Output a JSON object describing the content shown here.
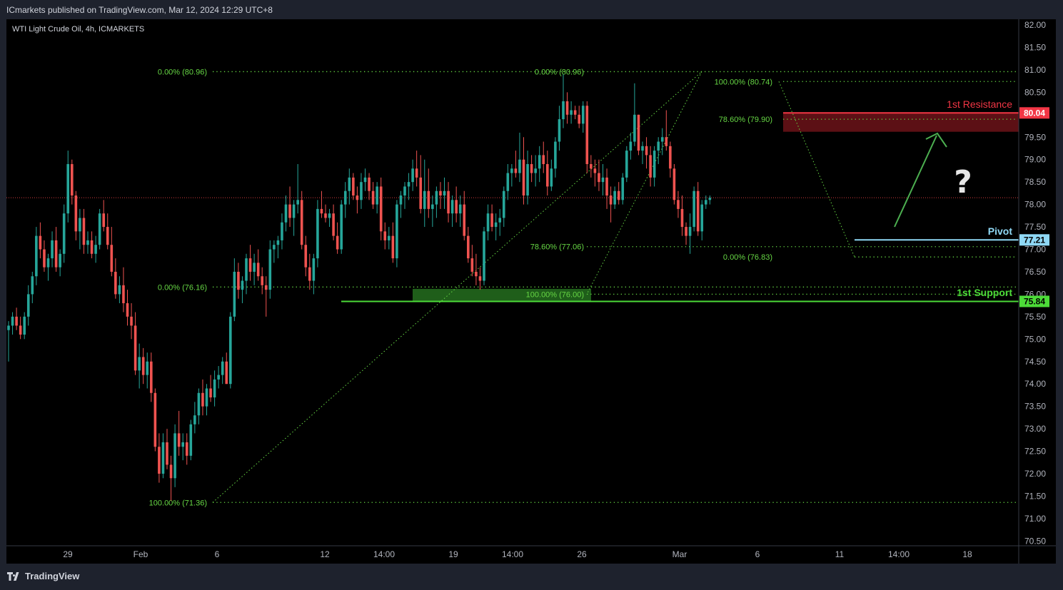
{
  "header": {
    "publisher": "ICmarkets published on TradingView.com, Mar 12, 2024 12:29 UTC+8",
    "symbol": "WTI Light Crude Oil, 4h, ICMARKETS"
  },
  "footer": {
    "brand": "TradingView"
  },
  "colors": {
    "up": "#26a69a",
    "down": "#ef5350",
    "fib": "#66d644",
    "resistance": "#f23645",
    "support": "#4cdb38",
    "pivot": "#8fd8f5",
    "bg": "#000000"
  },
  "chart_data": {
    "type": "candlestick",
    "title": "WTI Light Crude Oil, 4h, ICMARKETS",
    "ylim": [
      70.25,
      82.25
    ],
    "y_ticks": [
      "82.00",
      "81.50",
      "81.00",
      "80.50",
      "80.00",
      "79.50",
      "79.00",
      "78.50",
      "78.00",
      "77.50",
      "77.00",
      "76.50",
      "76.00",
      "75.50",
      "75.00",
      "74.50",
      "74.00",
      "73.50",
      "73.00",
      "72.50",
      "72.00",
      "71.50",
      "71.00",
      "70.50"
    ],
    "x_ticks": [
      "29",
      "Feb",
      "6",
      "12",
      "14:00",
      "19",
      "14:00",
      "26",
      "Mar",
      "6",
      "11",
      "14:00",
      "18"
    ],
    "current_price": 78.15,
    "price_markers": [
      {
        "name": "resistance",
        "label": "80.04",
        "value": 80.04
      },
      {
        "name": "pivot",
        "label": "77.21",
        "value": 77.21
      },
      {
        "name": "support",
        "label": "75.84",
        "value": 75.84
      }
    ],
    "zones": [
      {
        "name": "1st Resistance",
        "label": "1st Resistance",
        "from": 79.62,
        "to": 80.04
      },
      {
        "name": "1st Support",
        "label": "1st Support",
        "from": 75.84,
        "to": 76.12
      }
    ],
    "levels": [
      {
        "name": "Pivot",
        "label": "Pivot",
        "value": 77.21
      }
    ],
    "fib_labels": [
      {
        "text": "0.00% (80.96)",
        "value": 80.96
      },
      {
        "text": "0.00% (80.96)",
        "value": 80.96
      },
      {
        "text": "100.00% (80.74)",
        "value": 80.74
      },
      {
        "text": "78.60% (79.90)",
        "value": 79.9
      },
      {
        "text": "78.60% (77.06)",
        "value": 77.06
      },
      {
        "text": "0.00% (76.83)",
        "value": 76.83
      },
      {
        "text": "0.00% (76.16)",
        "value": 76.16
      },
      {
        "text": "100.00% (76.00)",
        "value": 76.0
      },
      {
        "text": "100.00% (71.36)",
        "value": 71.36
      }
    ],
    "annotation": "?",
    "candles": [
      [
        75.2,
        75.4,
        74.5,
        75.3
      ],
      [
        75.3,
        75.6,
        75.1,
        75.5
      ],
      [
        75.5,
        75.7,
        75.2,
        75.3
      ],
      [
        75.3,
        75.5,
        75.0,
        75.1
      ],
      [
        75.1,
        75.6,
        75.0,
        75.5
      ],
      [
        75.5,
        76.2,
        75.3,
        76.0
      ],
      [
        76.0,
        76.5,
        75.8,
        76.4
      ],
      [
        76.4,
        77.5,
        76.2,
        77.3
      ],
      [
        77.3,
        77.6,
        76.8,
        77.0
      ],
      [
        77.0,
        77.2,
        76.5,
        76.6
      ],
      [
        76.6,
        76.9,
        76.3,
        76.8
      ],
      [
        76.8,
        77.4,
        76.6,
        77.2
      ],
      [
        77.2,
        77.5,
        76.5,
        76.6
      ],
      [
        76.6,
        77.0,
        76.4,
        76.9
      ],
      [
        76.9,
        78.0,
        76.7,
        77.8
      ],
      [
        77.8,
        79.2,
        77.6,
        78.9
      ],
      [
        78.9,
        79.0,
        78.0,
        78.2
      ],
      [
        78.2,
        78.3,
        77.2,
        77.4
      ],
      [
        77.4,
        77.9,
        77.0,
        77.7
      ],
      [
        77.7,
        77.9,
        76.9,
        77.1
      ],
      [
        77.1,
        77.4,
        76.9,
        77.2
      ],
      [
        77.2,
        77.4,
        76.8,
        76.9
      ],
      [
        76.9,
        77.3,
        76.7,
        77.1
      ],
      [
        77.1,
        77.9,
        77.0,
        77.8
      ],
      [
        77.8,
        78.1,
        77.4,
        77.5
      ],
      [
        77.5,
        77.8,
        77.0,
        77.1
      ],
      [
        77.1,
        77.5,
        76.4,
        76.5
      ],
      [
        76.5,
        76.8,
        75.9,
        76.0
      ],
      [
        76.0,
        76.4,
        75.8,
        76.2
      ],
      [
        76.2,
        76.6,
        75.6,
        75.8
      ],
      [
        75.8,
        76.1,
        75.3,
        75.5
      ],
      [
        75.5,
        75.8,
        75.0,
        75.3
      ],
      [
        75.3,
        75.6,
        74.2,
        74.3
      ],
      [
        74.3,
        74.9,
        73.9,
        74.6
      ],
      [
        74.6,
        74.8,
        74.0,
        74.2
      ],
      [
        74.2,
        74.7,
        73.9,
        74.5
      ],
      [
        74.5,
        74.7,
        73.6,
        73.8
      ],
      [
        73.8,
        73.9,
        72.5,
        72.6
      ],
      [
        72.6,
        72.9,
        71.8,
        72.0
      ],
      [
        72.0,
        72.9,
        71.9,
        72.7
      ],
      [
        72.7,
        73.0,
        72.1,
        72.2
      ],
      [
        72.2,
        72.4,
        71.4,
        71.9
      ],
      [
        71.9,
        73.1,
        71.7,
        72.9
      ],
      [
        72.9,
        73.4,
        72.4,
        72.6
      ],
      [
        72.6,
        72.9,
        72.3,
        72.7
      ],
      [
        72.7,
        72.9,
        72.2,
        72.4
      ],
      [
        72.4,
        73.2,
        72.3,
        73.1
      ],
      [
        73.1,
        73.6,
        72.9,
        73.3
      ],
      [
        73.3,
        73.9,
        73.1,
        73.8
      ],
      [
        73.8,
        74.1,
        73.3,
        73.5
      ],
      [
        73.5,
        74.0,
        73.3,
        73.9
      ],
      [
        73.9,
        74.2,
        73.6,
        73.7
      ],
      [
        73.7,
        74.3,
        73.5,
        74.1
      ],
      [
        74.1,
        74.4,
        73.9,
        74.2
      ],
      [
        74.2,
        74.6,
        74.0,
        74.5
      ],
      [
        74.5,
        74.7,
        74.0,
        74.0
      ],
      [
        74.0,
        75.6,
        73.9,
        75.5
      ],
      [
        75.5,
        76.8,
        75.4,
        76.5
      ],
      [
        76.5,
        76.7,
        75.9,
        76.1
      ],
      [
        76.1,
        76.4,
        75.8,
        76.3
      ],
      [
        76.3,
        76.9,
        76.0,
        76.8
      ],
      [
        76.8,
        77.1,
        76.3,
        76.5
      ],
      [
        76.5,
        76.9,
        76.2,
        76.7
      ],
      [
        76.7,
        77.0,
        76.3,
        76.4
      ],
      [
        76.4,
        76.6,
        76.0,
        76.2
      ],
      [
        76.2,
        76.4,
        75.5,
        76.1
      ],
      [
        76.1,
        77.2,
        75.9,
        77.0
      ],
      [
        77.0,
        77.2,
        76.7,
        77.1
      ],
      [
        77.1,
        77.3,
        76.8,
        77.2
      ],
      [
        77.2,
        77.8,
        77.0,
        77.6
      ],
      [
        77.6,
        78.2,
        77.4,
        78.0
      ],
      [
        78.0,
        78.4,
        77.5,
        77.7
      ],
      [
        77.7,
        78.1,
        77.3,
        78.0
      ],
      [
        78.0,
        78.9,
        77.8,
        78.1
      ],
      [
        78.1,
        78.3,
        77.0,
        77.1
      ],
      [
        77.1,
        77.3,
        76.4,
        76.6
      ],
      [
        76.6,
        76.9,
        76.1,
        76.3
      ],
      [
        76.3,
        76.9,
        76.0,
        76.8
      ],
      [
        76.8,
        78.1,
        76.6,
        77.9
      ],
      [
        77.9,
        78.3,
        77.7,
        77.8
      ],
      [
        77.8,
        78.0,
        77.6,
        77.7
      ],
      [
        77.7,
        77.9,
        77.5,
        77.8
      ],
      [
        77.8,
        78.0,
        77.2,
        77.3
      ],
      [
        77.3,
        77.6,
        76.9,
        77.0
      ],
      [
        77.0,
        78.1,
        76.9,
        78.0
      ],
      [
        78.0,
        78.5,
        77.7,
        78.3
      ],
      [
        78.3,
        78.8,
        78.0,
        78.6
      ],
      [
        78.6,
        78.7,
        78.1,
        78.2
      ],
      [
        78.2,
        78.4,
        77.8,
        78.1
      ],
      [
        78.1,
        78.7,
        77.9,
        78.5
      ],
      [
        78.5,
        78.8,
        78.3,
        78.6
      ],
      [
        78.6,
        78.7,
        78.1,
        78.3
      ],
      [
        78.3,
        78.5,
        77.9,
        78.0
      ],
      [
        78.0,
        78.5,
        77.8,
        78.4
      ],
      [
        78.4,
        78.6,
        77.2,
        77.4
      ],
      [
        77.4,
        77.6,
        77.0,
        77.2
      ],
      [
        77.2,
        77.5,
        77.0,
        77.3
      ],
      [
        77.3,
        77.6,
        76.7,
        76.8
      ],
      [
        76.8,
        78.1,
        76.6,
        78.0
      ],
      [
        78.0,
        78.3,
        77.7,
        78.2
      ],
      [
        78.2,
        78.5,
        77.9,
        78.4
      ],
      [
        78.4,
        78.7,
        78.1,
        78.5
      ],
      [
        78.5,
        79.0,
        78.3,
        78.8
      ],
      [
        78.8,
        79.2,
        78.4,
        78.6
      ],
      [
        78.6,
        79.1,
        77.8,
        77.9
      ],
      [
        77.9,
        79.0,
        77.5,
        78.3
      ],
      [
        78.3,
        78.8,
        77.7,
        77.9
      ],
      [
        77.9,
        78.2,
        77.5,
        78.0
      ],
      [
        78.0,
        78.4,
        77.7,
        78.3
      ],
      [
        78.3,
        78.5,
        77.9,
        78.2
      ],
      [
        78.2,
        78.6,
        77.9,
        78.3
      ],
      [
        78.3,
        78.5,
        77.6,
        77.8
      ],
      [
        77.8,
        78.2,
        77.5,
        78.1
      ],
      [
        78.1,
        78.4,
        77.6,
        77.8
      ],
      [
        77.8,
        78.2,
        77.5,
        78.0
      ],
      [
        78.0,
        78.3,
        77.2,
        77.3
      ],
      [
        77.3,
        77.5,
        76.7,
        76.8
      ],
      [
        76.8,
        77.1,
        76.4,
        76.5
      ],
      [
        76.5,
        76.9,
        76.2,
        76.4
      ],
      [
        76.4,
        76.6,
        76.1,
        76.3
      ],
      [
        76.3,
        77.5,
        76.2,
        77.4
      ],
      [
        77.4,
        78.0,
        77.2,
        77.8
      ],
      [
        77.8,
        78.0,
        77.4,
        77.5
      ],
      [
        77.5,
        77.8,
        77.2,
        77.6
      ],
      [
        77.6,
        77.9,
        77.3,
        77.7
      ],
      [
        77.7,
        78.4,
        77.5,
        78.3
      ],
      [
        78.3,
        78.9,
        78.1,
        78.7
      ],
      [
        78.7,
        78.9,
        78.4,
        78.8
      ],
      [
        78.8,
        79.2,
        78.6,
        78.7
      ],
      [
        78.7,
        79.6,
        78.5,
        79.0
      ],
      [
        79.0,
        79.5,
        78.0,
        78.2
      ],
      [
        78.2,
        79.2,
        78.0,
        78.9
      ],
      [
        78.9,
        79.1,
        78.5,
        78.7
      ],
      [
        78.7,
        79.1,
        78.4,
        78.8
      ],
      [
        78.8,
        79.3,
        78.5,
        79.1
      ],
      [
        79.1,
        79.4,
        78.7,
        78.9
      ],
      [
        78.9,
        79.2,
        78.2,
        78.4
      ],
      [
        78.4,
        79.0,
        78.3,
        78.8
      ],
      [
        78.8,
        79.5,
        78.6,
        79.4
      ],
      [
        79.4,
        80.2,
        79.2,
        79.9
      ],
      [
        79.9,
        80.9,
        79.7,
        80.3
      ],
      [
        80.3,
        80.5,
        79.8,
        80.0
      ],
      [
        80.0,
        80.3,
        79.8,
        80.1
      ],
      [
        80.1,
        80.2,
        79.9,
        80.0
      ],
      [
        80.0,
        80.2,
        79.7,
        79.8
      ],
      [
        79.8,
        80.3,
        79.6,
        80.2
      ],
      [
        80.2,
        80.3,
        78.7,
        78.9
      ],
      [
        78.9,
        79.1,
        78.6,
        78.8
      ],
      [
        78.8,
        79.0,
        78.4,
        78.7
      ],
      [
        78.7,
        79.0,
        78.3,
        78.5
      ],
      [
        78.5,
        78.9,
        78.2,
        78.6
      ],
      [
        78.6,
        78.8,
        77.9,
        78.2
      ],
      [
        78.2,
        78.4,
        77.6,
        78.0
      ],
      [
        78.0,
        78.4,
        77.9,
        78.3
      ],
      [
        78.3,
        78.5,
        78.0,
        78.1
      ],
      [
        78.1,
        78.7,
        78.0,
        78.6
      ],
      [
        78.6,
        79.3,
        78.5,
        79.2
      ],
      [
        79.2,
        79.6,
        79.0,
        79.4
      ],
      [
        79.4,
        80.7,
        79.3,
        80.0
      ],
      [
        80.0,
        80.0,
        79.1,
        79.2
      ],
      [
        79.2,
        79.4,
        78.9,
        79.3
      ],
      [
        79.3,
        79.5,
        78.8,
        79.1
      ],
      [
        79.1,
        79.3,
        78.4,
        78.6
      ],
      [
        78.6,
        79.3,
        78.4,
        79.2
      ],
      [
        79.2,
        79.5,
        78.9,
        79.4
      ],
      [
        79.4,
        79.7,
        79.1,
        79.5
      ],
      [
        79.5,
        80.1,
        79.2,
        79.3
      ],
      [
        79.3,
        79.4,
        78.6,
        78.8
      ],
      [
        78.8,
        78.9,
        78.0,
        78.1
      ],
      [
        78.1,
        78.3,
        77.7,
        77.9
      ],
      [
        77.9,
        78.2,
        77.3,
        77.5
      ],
      [
        77.5,
        77.6,
        77.1,
        77.3
      ],
      [
        77.3,
        77.8,
        76.9,
        77.5
      ],
      [
        77.5,
        78.4,
        77.4,
        78.3
      ],
      [
        78.3,
        78.5,
        77.3,
        77.4
      ],
      [
        77.4,
        78.1,
        77.2,
        78.0
      ],
      [
        78.0,
        78.2,
        77.9,
        78.1
      ],
      [
        78.1,
        78.2,
        78.0,
        78.15
      ]
    ]
  }
}
